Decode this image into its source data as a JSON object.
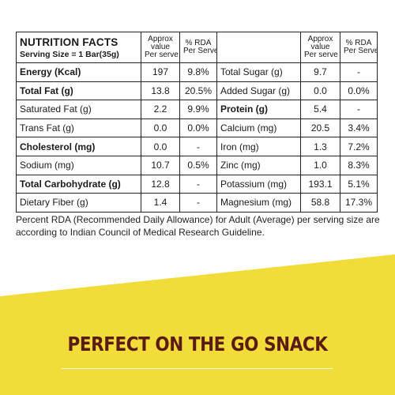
{
  "table": {
    "title": "NUTRITION FACTS",
    "serving_size": "Serving Size = 1 Bar(35g)",
    "col_value": [
      "Approx",
      "value",
      "Per serve"
    ],
    "col_rda": [
      "% RDA",
      "Per Serve"
    ],
    "rows": [
      {
        "left": {
          "name": "Energy (Kcal)",
          "bold": true,
          "value": "197",
          "rda": "9.8%"
        },
        "right": {
          "name": "Total Sugar (g)",
          "bold": false,
          "value": "9.7",
          "rda": "-"
        }
      },
      {
        "left": {
          "name": "Total Fat (g)",
          "bold": true,
          "value": "13.8",
          "rda": "20.5%"
        },
        "right": {
          "name": "Added Sugar (g)",
          "bold": false,
          "value": "0.0",
          "rda": "0.0%"
        }
      },
      {
        "left": {
          "name": "Saturated Fat (g)",
          "bold": false,
          "value": "2.2",
          "rda": "9.9%"
        },
        "right": {
          "name": "Protein (g)",
          "bold": true,
          "value": "5.4",
          "rda": "-"
        }
      },
      {
        "left": {
          "name": "Trans Fat (g)",
          "bold": false,
          "value": "0.0",
          "rda": "0.0%"
        },
        "right": {
          "name": "Calcium (mg)",
          "bold": false,
          "value": "20.5",
          "rda": "3.4%"
        }
      },
      {
        "left": {
          "name": "Cholesterol (mg)",
          "bold": true,
          "value": "0.0",
          "rda": "-"
        },
        "right": {
          "name": "Iron (mg)",
          "bold": false,
          "value": "1.3",
          "rda": "7.2%"
        }
      },
      {
        "left": {
          "name": "Sodium (mg)",
          "bold": false,
          "value": "10.7",
          "rda": "0.5%"
        },
        "right": {
          "name": "Zinc (mg)",
          "bold": false,
          "value": "1.0",
          "rda": "8.3%"
        }
      },
      {
        "left": {
          "name": "Total Carbohydrate (g)",
          "bold": true,
          "value": "12.8",
          "rda": "-"
        },
        "right": {
          "name": "Potassium (mg)",
          "bold": false,
          "value": "193.1",
          "rda": "5.1%"
        }
      },
      {
        "left": {
          "name": "Dietary Fiber (g)",
          "bold": false,
          "value": "1.4",
          "rda": "-"
        },
        "right": {
          "name": "Magnesium (mg)",
          "bold": false,
          "value": "58.8",
          "rda": "17.3%"
        }
      }
    ]
  },
  "footnote": "Percent RDA (Recommended Daily Allowance) for Adult (Average) per serving size are according to Indian Council of Medical Research Guideline.",
  "banner": {
    "slogan": "PERFECT ON THE GO SNACK",
    "background_color": "#f2dc3a",
    "text_color": "#5a1c10"
  }
}
